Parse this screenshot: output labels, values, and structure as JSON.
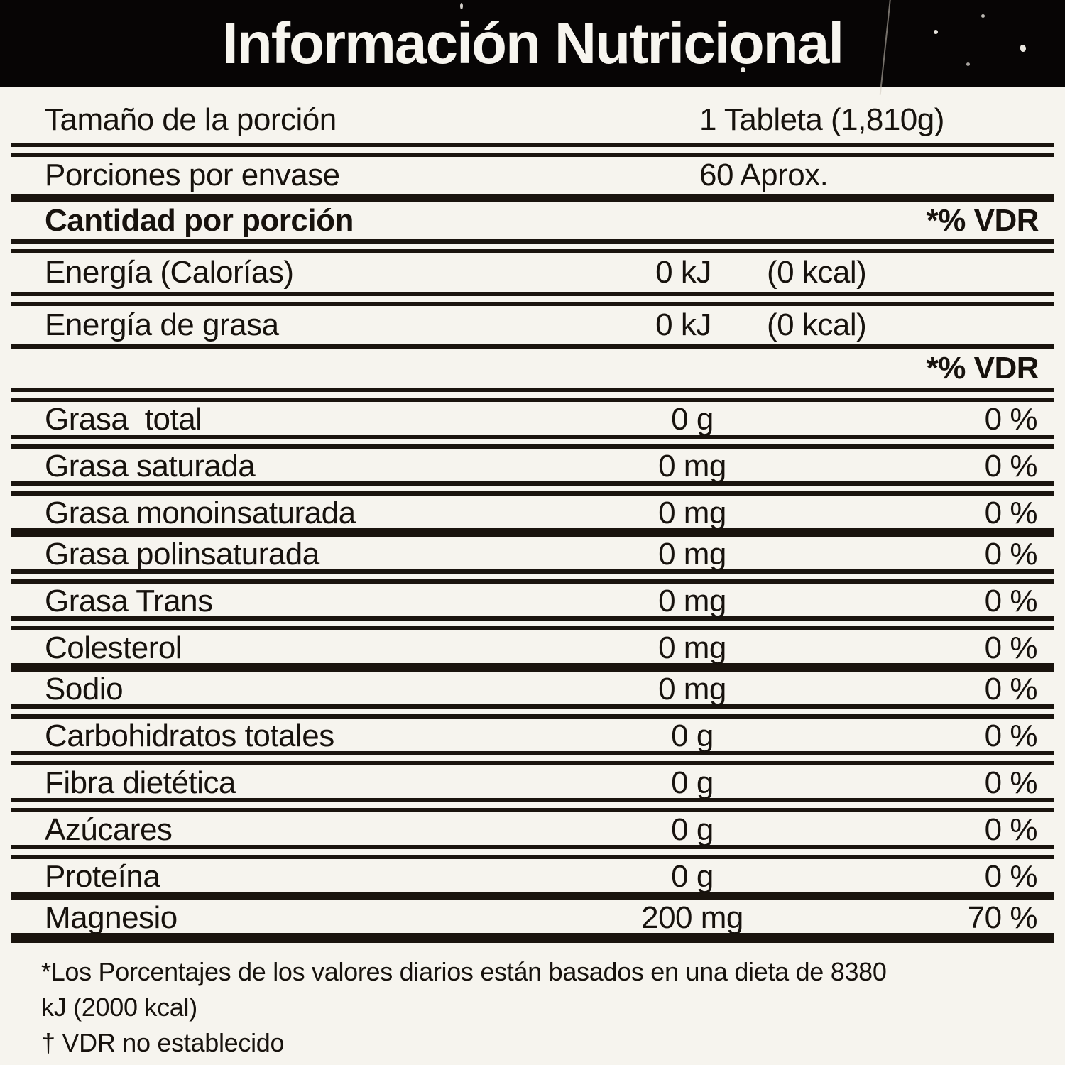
{
  "header": {
    "title": "Información Nutricional"
  },
  "serving_rows": [
    {
      "label": "Tamaño de la porción",
      "value": "1 Tableta (1,810g)"
    },
    {
      "label": "Porciones por envase",
      "value": "60 Aprox."
    }
  ],
  "amount_header": {
    "label": "Cantidad por porción",
    "vdr_label": "*% VDR"
  },
  "energy_rows": [
    {
      "label": "Energía (Calorías)",
      "kj": "0 kJ",
      "kcal": "(0 kcal)"
    },
    {
      "label": "Energía de grasa",
      "kj": "0 kJ",
      "kcal": "(0 kcal)"
    }
  ],
  "vdr_header": {
    "label": "*% VDR"
  },
  "nutrient_rows": [
    {
      "label": "Grasa  total",
      "amount": "0 g",
      "percent": "0 %"
    },
    {
      "label": "Grasa saturada",
      "amount": "0 mg",
      "percent": "0 %"
    },
    {
      "label": "Grasa monoinsaturada",
      "amount": "0 mg",
      "percent": "0 %"
    },
    {
      "label": "Grasa polinsaturada",
      "amount": "0 mg",
      "percent": "0 %"
    },
    {
      "label": "Grasa Trans",
      "amount": "0 mg",
      "percent": "0 %"
    },
    {
      "label": "Colesterol",
      "amount": "0 mg",
      "percent": "0 %"
    },
    {
      "label": "Sodio",
      "amount": "0 mg",
      "percent": "0 %"
    },
    {
      "label": "Carbohidratos totales",
      "amount": "0 g",
      "percent": "0 %"
    },
    {
      "label": "Fibra dietética",
      "amount": "0 g",
      "percent": "0 %"
    },
    {
      "label": "Azúcares",
      "amount": "0 g",
      "percent": "0 %"
    },
    {
      "label": "Proteína",
      "amount": "0 g",
      "percent": "0 %"
    },
    {
      "label": "Magnesio",
      "amount": "200 mg",
      "percent": "70 %"
    }
  ],
  "footnotes": [
    "*Los Porcentajes de los valores diarios están basados en una dieta de 8380",
    "kJ (2000 kcal)",
    "† VDR no establecido"
  ]
}
